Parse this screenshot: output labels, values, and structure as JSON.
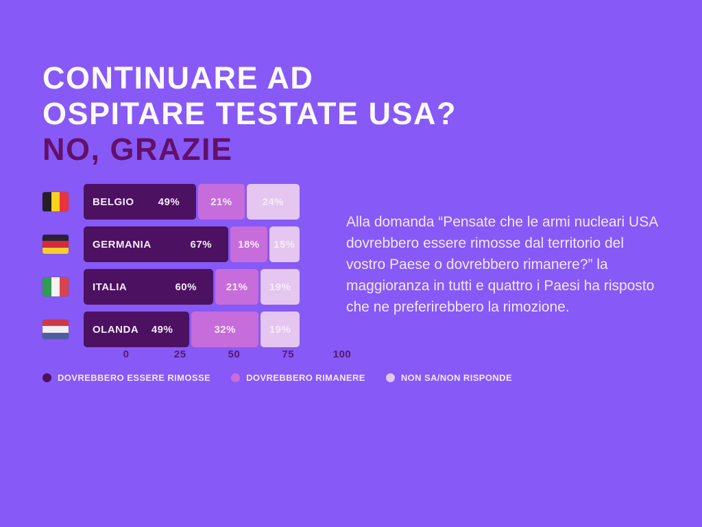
{
  "page": {
    "background": "#8759f6"
  },
  "title": {
    "line1": "CONTINUARE AD",
    "line2": "OSPITARE TESTATE USA?",
    "line3": "NO, GRAZIE"
  },
  "description": "Alla domanda “Pensate che le armi nucleari USA dovrebbero essere rimosse dal territorio del vostro Paese o dovrebbero rimanere?” la maggioranza in tutti e quattro i Paesi ha risposto che ne preferirebbero la rimozione.",
  "chart_data": {
    "type": "bar",
    "orientation": "horizontal",
    "stacked": true,
    "categories": [
      "BELGIO",
      "GERMANIA",
      "ITALIA",
      "OLANDA"
    ],
    "series": [
      {
        "name": "DOVREBBERO ESSERE RIMOSSE",
        "color": "#4C1161",
        "values": [
          49,
          67,
          60,
          49
        ]
      },
      {
        "name": "DOVREBBERO RIMANERE",
        "color": "#C76CDB",
        "values": [
          21,
          18,
          21,
          32
        ]
      },
      {
        "name": "NON SA/NON RISPONDE",
        "color": "#E5C6F0",
        "values": [
          24,
          15,
          19,
          19
        ]
      }
    ],
    "value_suffix": "%",
    "xlim": [
      0,
      100
    ],
    "x_ticks": [
      "0",
      "25",
      "50",
      "75",
      "100"
    ],
    "legend_position": "bottom",
    "grid": false
  },
  "flags": [
    {
      "country": "Belgio",
      "name": "belgium-flag",
      "orientation": "vertical",
      "colors": [
        "#241F24",
        "#F7D21A",
        "#E8343C"
      ]
    },
    {
      "country": "Germania",
      "name": "germany-flag",
      "orientation": "horizontal",
      "colors": [
        "#2B2231",
        "#D32B3D",
        "#F3CE2E"
      ]
    },
    {
      "country": "Italia",
      "name": "italy-flag",
      "orientation": "vertical",
      "colors": [
        "#2E9C52",
        "#F6F1F3",
        "#D8434D"
      ]
    },
    {
      "country": "Olanda",
      "name": "netherlands-flag",
      "orientation": "horizontal",
      "colors": [
        "#CE3A44",
        "#F2EDF1",
        "#4C5F9E"
      ]
    }
  ]
}
